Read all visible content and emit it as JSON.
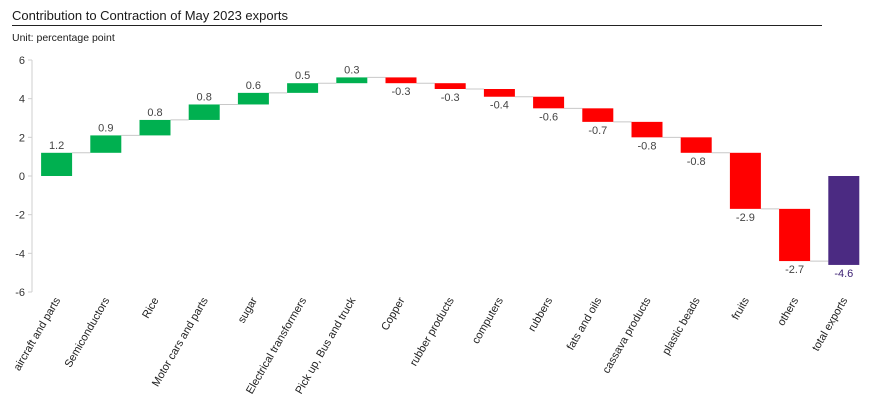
{
  "header": {
    "title": "Contribution to Contraction of May 2023 exports",
    "unit": "Unit: percentage point"
  },
  "colors": {
    "positive": "#00b050",
    "negative": "#ff0000",
    "total": "#4b2a82",
    "total_label": "#3b1f72",
    "connector": "#c8c8c8",
    "axis": "#cfcfcf",
    "label": "#444444"
  },
  "chart_data": {
    "type": "bar",
    "subtype": "waterfall",
    "title": "Contribution to Contraction of May 2023 exports",
    "ylabel": "",
    "xlabel": "",
    "ylim": [
      -6,
      6
    ],
    "yticks": [
      6,
      4,
      2,
      0,
      -2,
      -4,
      -6
    ],
    "grid": false,
    "categories": [
      "aircraft and parts",
      "Semiconductors",
      "Rice",
      "Motor cars and parts",
      "sugar",
      "Electrical transformers",
      "Pick up, Bus and truck",
      "Copper",
      "rubber products",
      "computers",
      "rubbers",
      "fats and oils",
      "cassava products",
      "plastic beads",
      "fruits",
      "others",
      "total exports"
    ],
    "values": [
      1.2,
      0.9,
      0.8,
      0.8,
      0.6,
      0.5,
      0.3,
      -0.3,
      -0.3,
      -0.4,
      -0.6,
      -0.7,
      -0.8,
      -0.8,
      -2.9,
      -2.7,
      -4.6
    ],
    "labels": [
      "1.2",
      "0.9",
      "0.8",
      "0.8",
      "0.6",
      "0.5",
      "0.3",
      "-0.3",
      "-0.3",
      "-0.4",
      "-0.6",
      "-0.7",
      "-0.8",
      "-0.8",
      "-2.9",
      "-2.7",
      "-4.6"
    ],
    "total_index": 16
  }
}
